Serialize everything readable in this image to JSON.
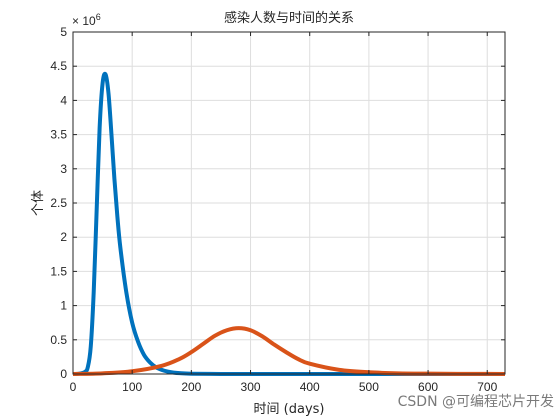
{
  "chart_data": {
    "type": "line",
    "title": "感染人数与时间的关系",
    "xlabel": "时间 (days)",
    "ylabel": "个体",
    "y_exponent_label": "× 10",
    "y_exponent_power": "6",
    "y_multiplier": 1000000,
    "xlim": [
      0,
      730
    ],
    "ylim": [
      0,
      5
    ],
    "xticks": [
      0,
      100,
      200,
      300,
      400,
      500,
      600,
      700
    ],
    "yticks": [
      0,
      0.5,
      1,
      1.5,
      2,
      2.5,
      3,
      3.5,
      4,
      4.5,
      5
    ],
    "xtick_labels": [
      "0",
      "100",
      "200",
      "300",
      "400",
      "500",
      "600",
      "700"
    ],
    "ytick_labels": [
      "0",
      "0.5",
      "1",
      "1.5",
      "2",
      "2.5",
      "3",
      "3.5",
      "4",
      "4.5",
      "5"
    ],
    "grid": true,
    "series": [
      {
        "color": "#0072BD",
        "x": [
          0,
          10,
          20,
          25,
          30,
          35,
          40,
          45,
          50,
          55,
          60,
          65,
          70,
          75,
          80,
          90,
          100,
          110,
          120,
          130,
          140,
          150,
          160,
          170,
          180,
          200,
          250,
          300,
          730
        ],
        "y": [
          0.0,
          0.005,
          0.03,
          0.1,
          0.4,
          1.2,
          2.4,
          3.6,
          4.25,
          4.38,
          4.1,
          3.5,
          2.85,
          2.3,
          1.85,
          1.2,
          0.75,
          0.47,
          0.28,
          0.17,
          0.1,
          0.06,
          0.035,
          0.02,
          0.012,
          0.004,
          0.0,
          0.0,
          0.0
        ]
      },
      {
        "color": "#D95319",
        "x": [
          0,
          50,
          100,
          150,
          180,
          200,
          220,
          240,
          260,
          280,
          300,
          320,
          340,
          360,
          380,
          400,
          450,
          500,
          550,
          600,
          650,
          700,
          730
        ],
        "y": [
          0.0,
          0.01,
          0.04,
          0.12,
          0.22,
          0.32,
          0.44,
          0.56,
          0.64,
          0.67,
          0.64,
          0.55,
          0.43,
          0.32,
          0.22,
          0.15,
          0.06,
          0.025,
          0.01,
          0.005,
          0.002,
          0.001,
          0.0
        ]
      }
    ]
  },
  "watermark": "CSDN @可编程芯片开发"
}
